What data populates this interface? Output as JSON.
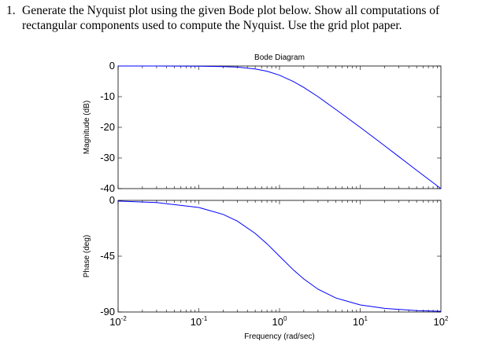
{
  "question": {
    "number": "1.",
    "text": "Generate the Nyquist plot using the given Bode plot below. Show all computations of rectangular components used to compute the Nyquist. Use the grid plot paper."
  },
  "chart_data": [
    {
      "type": "line",
      "title": "Bode Diagram",
      "ylabel": "Magnitude (dB)",
      "xscale": "log",
      "xlim": [
        0.01,
        100
      ],
      "ylim": [
        -40,
        0
      ],
      "yticks": [
        0,
        -10,
        -20,
        -30,
        -40
      ],
      "yticklabels": [
        "0",
        "-10",
        "-20",
        "-30",
        "-40"
      ],
      "grid": false,
      "line_color": "#0000ff",
      "x": [
        0.01,
        0.03,
        0.1,
        0.2,
        0.3,
        0.5,
        0.7,
        1,
        1.5,
        2,
        3,
        5,
        10,
        20,
        50,
        100
      ],
      "y": [
        0,
        0,
        -0.04,
        -0.17,
        -0.37,
        -0.97,
        -1.7,
        -3.0,
        -5.1,
        -7.0,
        -10.0,
        -14.2,
        -20.0,
        -26.0,
        -34.0,
        -40.0
      ]
    },
    {
      "type": "line",
      "xlabel": "Frequency (rad/sec)",
      "ylabel": "Phase (deg)",
      "xscale": "log",
      "xlim": [
        0.01,
        100
      ],
      "ylim": [
        -90,
        0
      ],
      "yticks": [
        0,
        -45,
        -90
      ],
      "yticklabels": [
        "0",
        "-45",
        "-90"
      ],
      "xticks": [
        0.01,
        0.1,
        1,
        10,
        100
      ],
      "xticklabels": [
        {
          "base": "10",
          "exp": "-2"
        },
        {
          "base": "10",
          "exp": "-1"
        },
        {
          "base": "10",
          "exp": "0"
        },
        {
          "base": "10",
          "exp": "1"
        },
        {
          "base": "10",
          "exp": "2"
        }
      ],
      "grid": false,
      "line_color": "#0000ff",
      "x": [
        0.01,
        0.03,
        0.1,
        0.2,
        0.3,
        0.5,
        0.7,
        1,
        1.5,
        2,
        3,
        5,
        10,
        20,
        50,
        100
      ],
      "y": [
        -0.6,
        -1.7,
        -5.7,
        -11.3,
        -16.7,
        -26.6,
        -35.0,
        -45.0,
        -56.3,
        -63.4,
        -71.6,
        -78.7,
        -84.3,
        -87.1,
        -88.9,
        -89.4
      ]
    }
  ]
}
